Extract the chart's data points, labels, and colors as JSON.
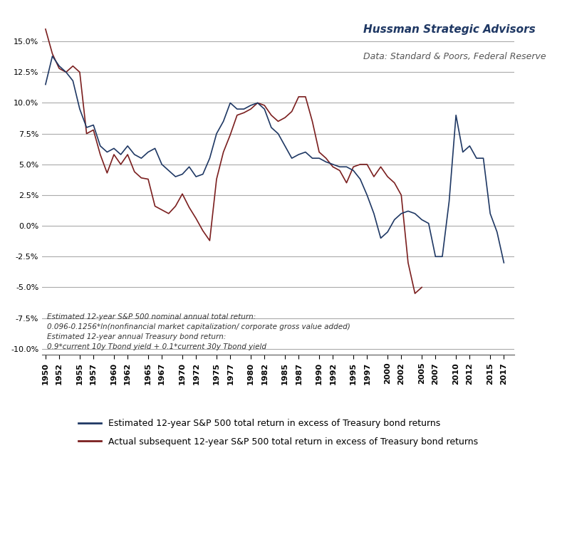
{
  "title_main": "Hussman Strategic Advisors",
  "title_data": "Data: Standard & Poors, Federal Reserve",
  "annotation": "Estimated 12-year S&P 500 nominal annual total return:\n0.096-0.1256*ln(nonfinancial market capitalization/ corporate gross value added)\nEstimated 12-year annual Treasury bond return:\n0.9*current 10y Tbond yield + 0.1*current 30y Tbond yield",
  "legend_blue": "Estimated 12-year S&P 500 total return in excess of Treasury bond returns",
  "legend_red": "Actual subsequent 12-year S&P 500 total return in excess of Treasury bond returns",
  "line_color_blue": "#1F3864",
  "line_color_red": "#7B1F1F",
  "ylim": [
    -0.105,
    0.175
  ],
  "yticks": [
    -0.1,
    -0.075,
    -0.05,
    -0.025,
    0.0,
    0.025,
    0.05,
    0.075,
    0.1,
    0.125,
    0.15
  ],
  "xticks": [
    1950,
    1952,
    1955,
    1957,
    1960,
    1962,
    1965,
    1967,
    1970,
    1972,
    1975,
    1977,
    1980,
    1982,
    1985,
    1987,
    1990,
    1992,
    1995,
    1997,
    2000,
    2002,
    2005,
    2007,
    2010,
    2012,
    2015,
    2017
  ],
  "background_color": "#FFFFFF",
  "grid_color": "#AAAAAA",
  "years_blue": [
    1950,
    1951,
    1952,
    1953,
    1954,
    1955,
    1956,
    1957,
    1958,
    1959,
    1960,
    1961,
    1962,
    1963,
    1964,
    1965,
    1966,
    1967,
    1968,
    1969,
    1970,
    1971,
    1972,
    1973,
    1974,
    1975,
    1976,
    1977,
    1978,
    1979,
    1980,
    1981,
    1982,
    1983,
    1984,
    1985,
    1986,
    1987,
    1988,
    1989,
    1990,
    1991,
    1992,
    1993,
    1994,
    1995,
    1996,
    1997,
    1998,
    1999,
    2000,
    2001,
    2002,
    2003,
    2004,
    2005,
    2006,
    2007,
    2008,
    2009,
    2010,
    2011,
    2012,
    2013,
    2014,
    2015,
    2016,
    2017
  ],
  "values_blue": [
    0.115,
    0.138,
    0.13,
    0.125,
    0.118,
    0.095,
    0.08,
    0.082,
    0.065,
    0.06,
    0.063,
    0.058,
    0.065,
    0.058,
    0.055,
    0.06,
    0.063,
    0.05,
    0.045,
    0.04,
    0.042,
    0.048,
    0.04,
    0.042,
    0.055,
    0.075,
    0.085,
    0.1,
    0.095,
    0.095,
    0.098,
    0.1,
    0.095,
    0.08,
    0.075,
    0.065,
    0.055,
    0.058,
    0.06,
    0.055,
    0.055,
    0.052,
    0.05,
    0.048,
    0.048,
    0.045,
    0.038,
    0.025,
    0.01,
    -0.01,
    -0.005,
    0.005,
    0.01,
    0.012,
    0.01,
    0.005,
    0.002,
    -0.025,
    -0.025,
    0.02,
    0.09,
    0.06,
    0.065,
    0.055,
    0.055,
    0.01,
    -0.005,
    -0.03
  ],
  "years_red": [
    1950,
    1951,
    1952,
    1953,
    1954,
    1955,
    1956,
    1957,
    1958,
    1959,
    1960,
    1961,
    1962,
    1963,
    1964,
    1965,
    1966,
    1967,
    1968,
    1969,
    1970,
    1971,
    1972,
    1973,
    1974,
    1975,
    1976,
    1977,
    1978,
    1979,
    1980,
    1981,
    1982,
    1983,
    1984,
    1985,
    1986,
    1987,
    1988,
    1989,
    1990,
    1991,
    1992,
    1993,
    1994,
    1995,
    1996,
    1997,
    1998,
    1999,
    2000,
    2001,
    2002,
    2003,
    2004,
    2005
  ],
  "values_red": [
    0.16,
    0.14,
    0.128,
    0.125,
    0.13,
    0.125,
    0.075,
    0.078,
    0.058,
    0.043,
    0.058,
    0.05,
    0.058,
    0.044,
    0.039,
    0.038,
    0.016,
    0.013,
    0.01,
    0.016,
    0.026,
    0.015,
    0.006,
    -0.004,
    -0.012,
    0.038,
    0.06,
    0.074,
    0.09,
    0.092,
    0.095,
    0.1,
    0.098,
    0.09,
    0.085,
    0.088,
    0.093,
    0.105,
    0.105,
    0.085,
    0.06,
    0.055,
    0.048,
    0.045,
    0.035,
    0.048,
    0.05,
    0.05,
    0.04,
    0.048,
    0.04,
    0.035,
    0.025,
    -0.03,
    -0.055,
    -0.05
  ]
}
